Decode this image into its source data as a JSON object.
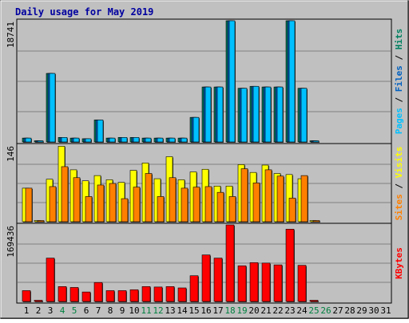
{
  "chart_data": {
    "type": "bar",
    "title": "Daily usage for May 2019",
    "categories": [
      "1",
      "2",
      "3",
      "4",
      "5",
      "6",
      "7",
      "8",
      "9",
      "10",
      "11",
      "12",
      "13",
      "14",
      "15",
      "16",
      "17",
      "18",
      "19",
      "20",
      "21",
      "22",
      "23",
      "24",
      "25",
      "26",
      "27",
      "28",
      "29",
      "30",
      "31"
    ],
    "weekend_days": [
      "4",
      "5",
      "11",
      "12",
      "18",
      "19",
      "25",
      "26"
    ],
    "panels": [
      {
        "name": "pages_files_hits",
        "scale_label": "18741",
        "ymax": 18741,
        "ylabel_parts": [
          {
            "text": "Pages",
            "color": "#00c0ff"
          },
          {
            "text": " / ",
            "color": "#000000"
          },
          {
            "text": "Files",
            "color": "#0060c0"
          },
          {
            "text": " / ",
            "color": "#000000"
          },
          {
            "text": "Hits",
            "color": "#008060"
          }
        ],
        "series": [
          {
            "key": "hits",
            "color": "#008060",
            "values": [
              600,
              100,
              10600,
              700,
              600,
              500,
              3400,
              600,
              700,
              700,
              600,
              600,
              600,
              600,
              3800,
              8500,
              8500,
              18741,
              8300,
              8600,
              8500,
              8500,
              18741,
              8300,
              100,
              0,
              0,
              0,
              0,
              0,
              0
            ]
          },
          {
            "key": "files",
            "color": "#0060c0",
            "values": [
              600,
              100,
              10600,
              700,
              600,
              500,
              3400,
              600,
              700,
              700,
              600,
              600,
              600,
              600,
              3800,
              8500,
              8500,
              18741,
              8300,
              8600,
              8500,
              8500,
              18741,
              8300,
              100,
              0,
              0,
              0,
              0,
              0,
              0
            ]
          },
          {
            "key": "pages",
            "color": "#00c0ff",
            "values": [
              600,
              100,
              10600,
              700,
              600,
              500,
              3400,
              600,
              700,
              700,
              600,
              600,
              600,
              600,
              3800,
              8500,
              8500,
              18741,
              8300,
              8600,
              8500,
              8500,
              18741,
              8300,
              100,
              0,
              0,
              0,
              0,
              0,
              0
            ]
          }
        ]
      },
      {
        "name": "visits_sites",
        "scale_label": "146",
        "ymax": 146,
        "ylabel_parts": [
          {
            "text": "Sites",
            "color": "#ff8000"
          },
          {
            "text": " / ",
            "color": "#000000"
          },
          {
            "text": "Visits",
            "color": "#ffff00"
          }
        ],
        "series": [
          {
            "key": "visits",
            "color": "#ffff00",
            "values": [
              64,
              2,
              81,
              144,
              99,
              78,
              88,
              80,
              75,
              98,
              112,
              82,
              124,
              80,
              95,
              100,
              68,
              68,
              109,
              94,
              108,
              92,
              90,
              82,
              2,
              0,
              0,
              0,
              0,
              0,
              0
            ]
          },
          {
            "key": "sites",
            "color": "#ff8000",
            "values": [
              64,
              2,
              67,
              105,
              84,
              48,
              70,
              73,
              44,
              66,
              92,
              48,
              84,
              64,
              66,
              67,
              56,
              48,
              101,
              74,
              99,
              87,
              45,
              88,
              2,
              0,
              0,
              0,
              0,
              0,
              0
            ]
          }
        ]
      },
      {
        "name": "kbytes",
        "scale_label": "169436",
        "ymax": 169436,
        "ylabel_parts": [
          {
            "text": "KBytes",
            "color": "#ff0000"
          }
        ],
        "series": [
          {
            "key": "kbytes",
            "color": "#ff0000",
            "values": [
              24000,
              2000,
              96000,
              33000,
              31000,
              21000,
              42000,
              24000,
              24000,
              26000,
              33000,
              32000,
              33000,
              30000,
              57000,
              103000,
              96000,
              169436,
              79000,
              86000,
              85000,
              81000,
              160000,
              80000,
              2000,
              0,
              0,
              0,
              0,
              0,
              0
            ]
          }
        ]
      }
    ]
  }
}
